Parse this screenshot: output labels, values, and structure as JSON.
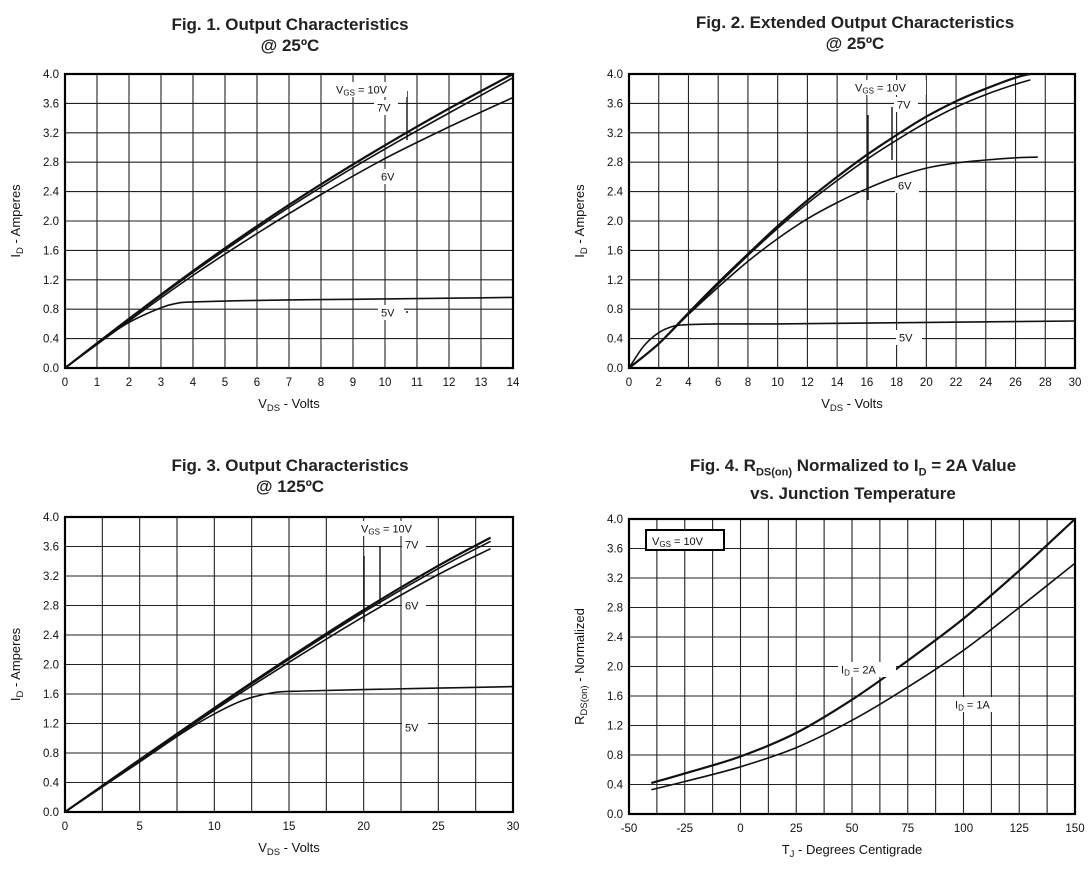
{
  "figures": [
    {
      "title_line1": "Fig. 1. Output Characteristics",
      "title_line2": "@ 25ºC",
      "xlabel_main": "V",
      "xlabel_sub": "DS",
      "xlabel_rest": " - Volts",
      "ylabel_main": "I",
      "ylabel_sub": "D",
      "ylabel_rest": " - Amperes"
    },
    {
      "title_line1": "Fig. 2. Extended Output Characteristics",
      "title_line2": "@ 25ºC",
      "xlabel_main": "V",
      "xlabel_sub": "DS",
      "xlabel_rest": " - Volts",
      "ylabel_main": "I",
      "ylabel_sub": "D",
      "ylabel_rest": " - Amperes"
    },
    {
      "title_line1": "Fig. 3. Output Characteristics",
      "title_line2": "@ 125ºC",
      "xlabel_main": "V",
      "xlabel_sub": "DS",
      "xlabel_rest": " - Volts",
      "ylabel_main": "I",
      "ylabel_sub": "D",
      "ylabel_rest": " - Amperes"
    },
    {
      "title_line1a": "Fig. 4. R",
      "title_line1_sub": "DS(on)",
      "title_line1b": " Normalized to I",
      "title_line1_sub2": "D",
      "title_line1c": " = 2A Value",
      "title_line2": "vs. Junction Temperature",
      "xlabel_main": "T",
      "xlabel_sub": "J",
      "xlabel_rest": " - Degrees Centigrade",
      "ylabel_main": "R",
      "ylabel_sub": "DS(on)",
      "ylabel_rest": " - Normalized",
      "box_label_main": "V",
      "box_label_sub": "GS",
      "box_label_rest": " = 10V"
    }
  ],
  "chart_data": [
    {
      "type": "line",
      "xlim": [
        0,
        14
      ],
      "ylim": [
        0,
        4.0
      ],
      "xticks": [
        "0",
        "1",
        "2",
        "3",
        "4",
        "5",
        "6",
        "7",
        "8",
        "9",
        "10",
        "11",
        "12",
        "13",
        "14"
      ],
      "yticks": [
        "0.0",
        "0.4",
        "0.8",
        "1.2",
        "1.6",
        "2.0",
        "2.4",
        "2.8",
        "3.2",
        "3.6",
        "4.0"
      ],
      "grid": true,
      "series": [
        {
          "name": "VGS = 10V",
          "label_main": "V",
          "label_sub": "GS",
          "label_rest": " = 10V",
          "x": [
            0,
            2,
            4,
            6,
            8,
            10,
            12,
            14
          ],
          "y": [
            0,
            0.67,
            1.32,
            1.93,
            2.5,
            3.03,
            3.53,
            4.0
          ]
        },
        {
          "name": "7V",
          "label": "7V",
          "x": [
            0,
            2,
            4,
            6,
            8,
            10,
            12,
            14
          ],
          "y": [
            0,
            0.66,
            1.3,
            1.9,
            2.46,
            2.98,
            3.47,
            3.95
          ]
        },
        {
          "name": "6V",
          "label": "6V",
          "x": [
            0,
            2,
            4,
            6,
            8,
            10,
            12,
            14
          ],
          "y": [
            0,
            0.64,
            1.26,
            1.83,
            2.36,
            2.85,
            3.28,
            3.68
          ]
        },
        {
          "name": "5V",
          "label": "5V",
          "x": [
            0,
            1,
            2,
            3,
            3.5,
            4,
            6,
            8,
            10,
            12,
            14
          ],
          "y": [
            0,
            0.33,
            0.62,
            0.82,
            0.88,
            0.9,
            0.92,
            0.93,
            0.94,
            0.95,
            0.96
          ]
        }
      ]
    },
    {
      "type": "line",
      "xlim": [
        0,
        30
      ],
      "ylim": [
        0,
        4.0
      ],
      "xticks": [
        "0",
        "2",
        "4",
        "6",
        "8",
        "10",
        "12",
        "14",
        "16",
        "18",
        "20",
        "22",
        "24",
        "26",
        "28",
        "30"
      ],
      "yticks": [
        "0.0",
        "0.4",
        "0.8",
        "1.2",
        "1.6",
        "2.0",
        "2.4",
        "2.8",
        "3.2",
        "3.6",
        "4.0"
      ],
      "grid": true,
      "series": [
        {
          "name": "VGS = 10V",
          "label_main": "V",
          "label_sub": "GS",
          "label_rest": " = 10V",
          "x": [
            0,
            2,
            4,
            6,
            8,
            10,
            12,
            14,
            16,
            18,
            20,
            22,
            24,
            26,
            27
          ],
          "y": [
            0,
            0.33,
            0.75,
            1.16,
            1.55,
            1.93,
            2.28,
            2.6,
            2.9,
            3.17,
            3.42,
            3.63,
            3.8,
            3.95,
            4.0
          ]
        },
        {
          "name": "7V",
          "label": "7V",
          "x": [
            0,
            2,
            4,
            6,
            8,
            10,
            12,
            14,
            16,
            18,
            20,
            22,
            24,
            26,
            27
          ],
          "y": [
            0,
            0.33,
            0.74,
            1.14,
            1.53,
            1.9,
            2.24,
            2.55,
            2.84,
            3.1,
            3.34,
            3.55,
            3.72,
            3.86,
            3.92
          ]
        },
        {
          "name": "6V",
          "label": "6V",
          "x": [
            0,
            2,
            4,
            6,
            8,
            10,
            12,
            14,
            16,
            18,
            20,
            22,
            24,
            26,
            27.5
          ],
          "y": [
            0,
            0.33,
            0.73,
            1.1,
            1.45,
            1.76,
            2.03,
            2.25,
            2.44,
            2.6,
            2.72,
            2.79,
            2.83,
            2.86,
            2.87
          ]
        },
        {
          "name": "5V",
          "label": "5V",
          "x": [
            0,
            1,
            2,
            3,
            4,
            6,
            10,
            15,
            20,
            25,
            30
          ],
          "y": [
            0,
            0.3,
            0.48,
            0.57,
            0.59,
            0.6,
            0.6,
            0.61,
            0.62,
            0.63,
            0.64
          ]
        }
      ]
    },
    {
      "type": "line",
      "xlim": [
        0,
        30
      ],
      "ylim": [
        0,
        4.0
      ],
      "xticks": [
        "0",
        "5",
        "10",
        "15",
        "20",
        "25",
        "30"
      ],
      "yticks": [
        "0.0",
        "0.4",
        "0.8",
        "1.2",
        "1.6",
        "2.0",
        "2.4",
        "2.8",
        "3.2",
        "3.6",
        "4.0"
      ],
      "grid": true,
      "series": [
        {
          "name": "VGS = 10V",
          "label_main": "V",
          "label_sub": "GS",
          "label_rest": " = 10V",
          "x": [
            0,
            5,
            10,
            15,
            20,
            25,
            28.5
          ],
          "y": [
            0,
            0.71,
            1.41,
            2.09,
            2.74,
            3.34,
            3.72
          ]
        },
        {
          "name": "7V",
          "label": "7V",
          "x": [
            0,
            5,
            10,
            15,
            20,
            25,
            28.5
          ],
          "y": [
            0,
            0.71,
            1.4,
            2.07,
            2.71,
            3.3,
            3.67
          ]
        },
        {
          "name": "6V",
          "label": "6V",
          "x": [
            0,
            5,
            10,
            15,
            20,
            25,
            28.5
          ],
          "y": [
            0,
            0.7,
            1.38,
            2.03,
            2.65,
            3.22,
            3.57
          ]
        },
        {
          "name": "5V",
          "label": "5V",
          "x": [
            0,
            5,
            8,
            10,
            12,
            14,
            16,
            20,
            25,
            30
          ],
          "y": [
            0,
            0.68,
            1.09,
            1.33,
            1.52,
            1.62,
            1.64,
            1.66,
            1.68,
            1.7
          ]
        }
      ]
    },
    {
      "type": "line",
      "xlim": [
        -50,
        150
      ],
      "ylim": [
        0,
        4.0
      ],
      "xticks": [
        "-50",
        "-25",
        "0",
        "25",
        "50",
        "75",
        "100",
        "125",
        "150"
      ],
      "yticks": [
        "0.0",
        "0.4",
        "0.8",
        "1.2",
        "1.6",
        "2.0",
        "2.4",
        "2.8",
        "3.2",
        "3.6",
        "4.0"
      ],
      "grid": true,
      "series": [
        {
          "name": "ID = 2A",
          "label_main": "I",
          "label_sub": "D",
          "label_rest": " = 2A",
          "x": [
            -40,
            -25,
            0,
            25,
            50,
            75,
            100,
            125,
            150
          ],
          "y": [
            0.42,
            0.55,
            0.78,
            1.1,
            1.55,
            2.08,
            2.65,
            3.3,
            4.0
          ]
        },
        {
          "name": "ID = 1A",
          "label_main": "I",
          "label_sub": "D",
          "label_rest": " = 1A",
          "x": [
            -40,
            -25,
            0,
            25,
            50,
            75,
            100,
            125,
            150
          ],
          "y": [
            0.33,
            0.44,
            0.64,
            0.9,
            1.27,
            1.72,
            2.22,
            2.8,
            3.4
          ]
        }
      ]
    }
  ]
}
